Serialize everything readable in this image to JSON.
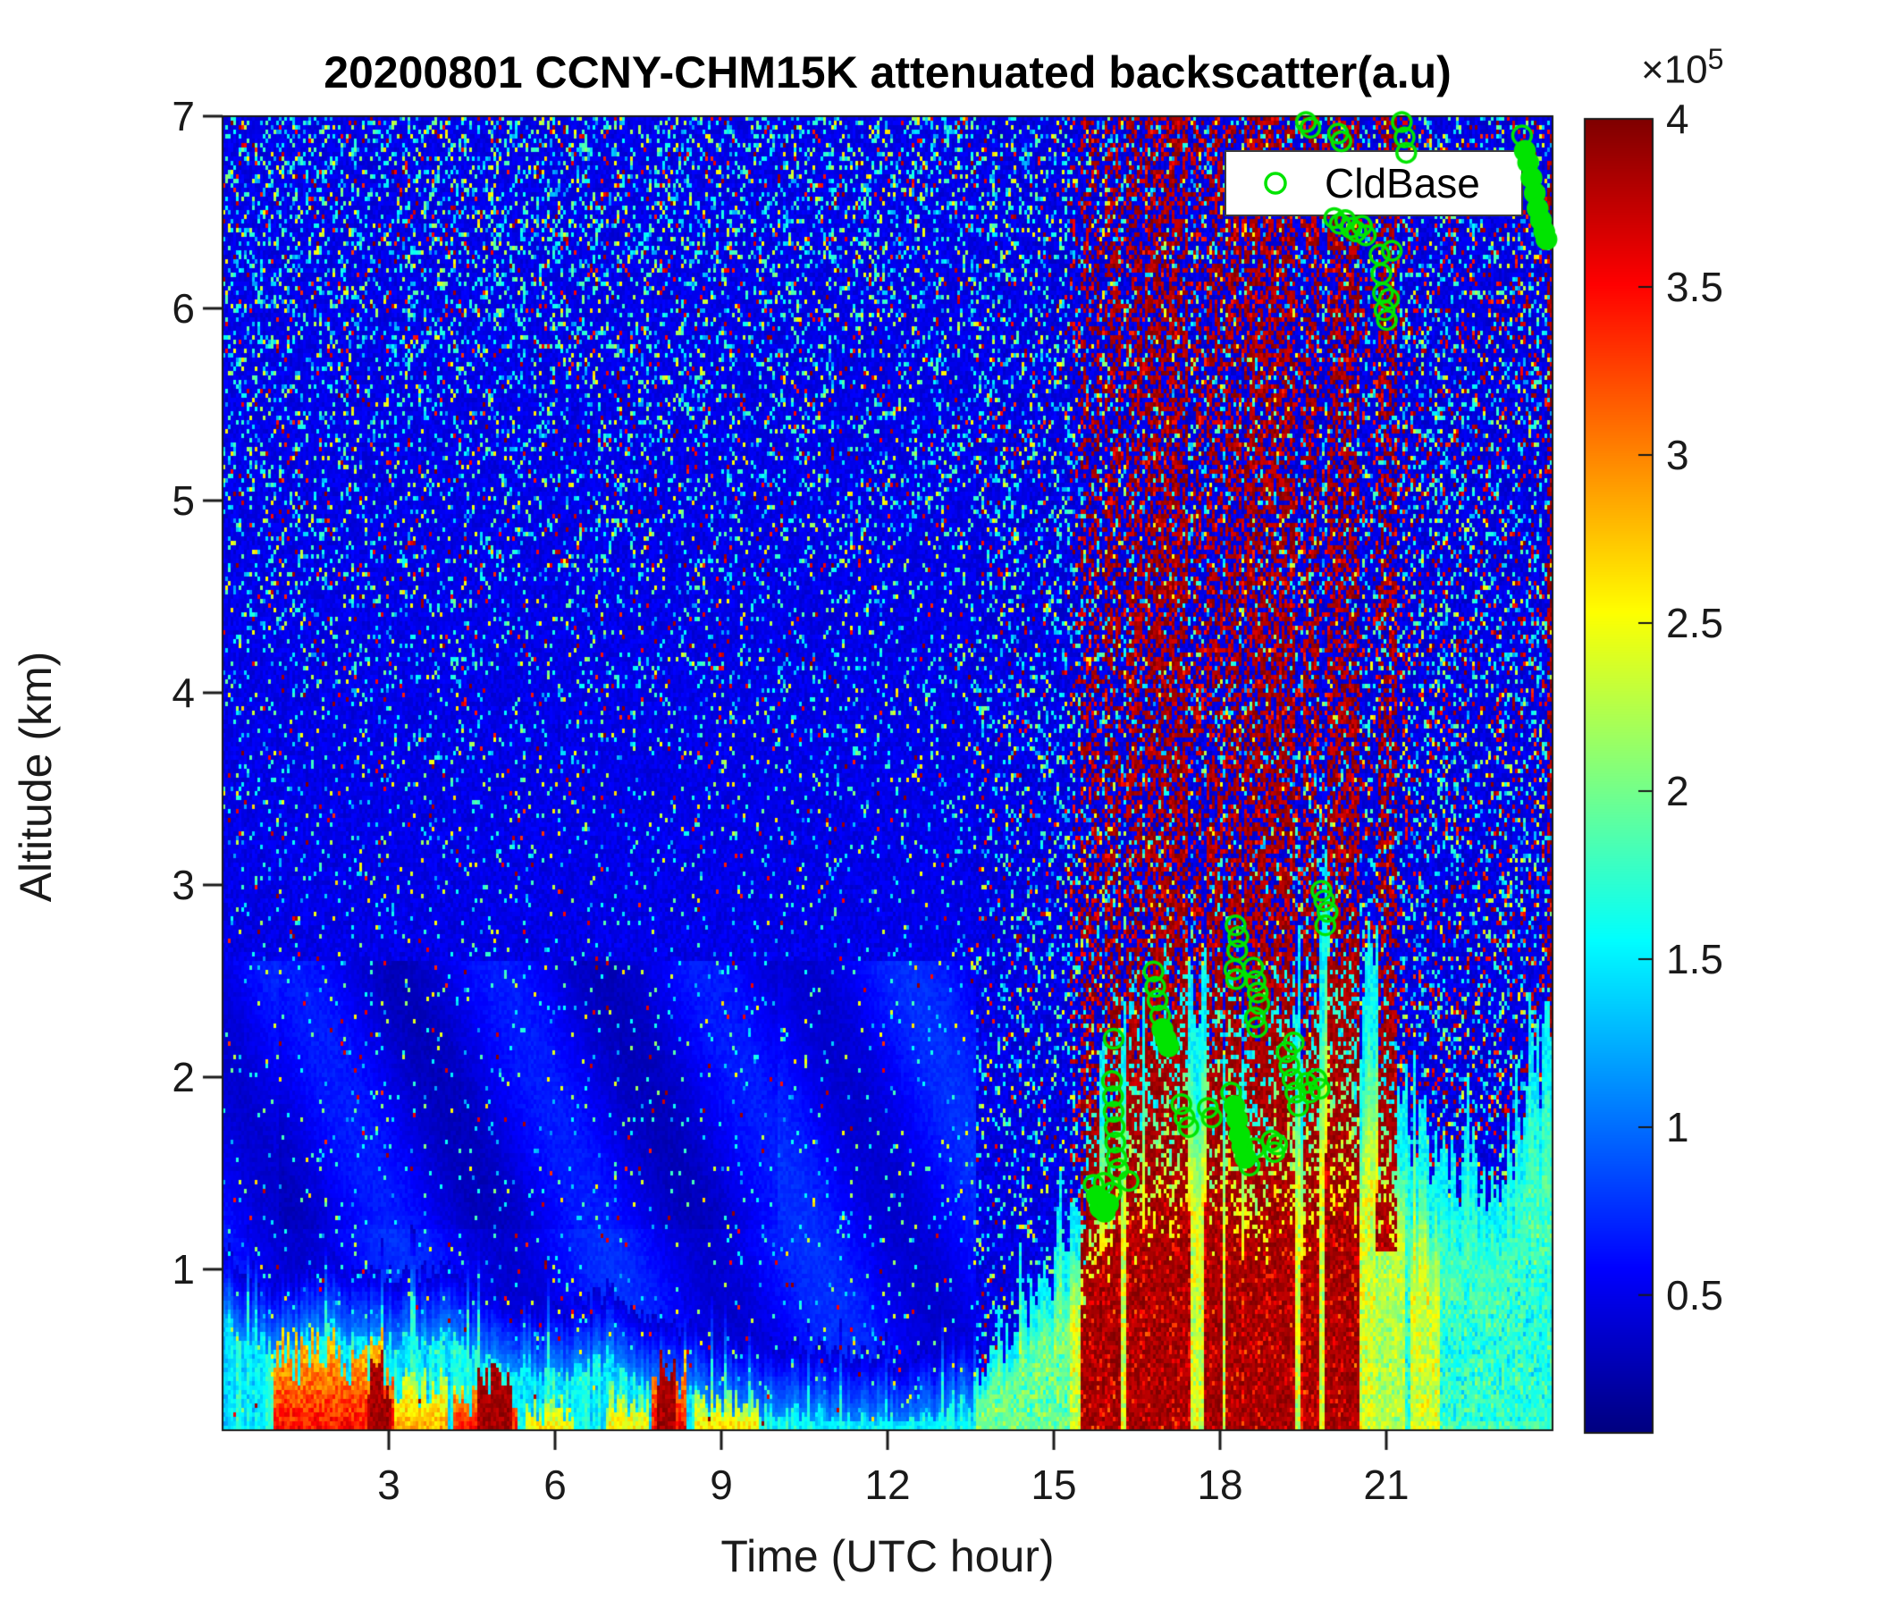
{
  "chart_data": {
    "type": "heatmap",
    "title": "20200801 CCNY-CHM15K attenuated backscatter(a.u)",
    "xlabel": "Time (UTC hour)",
    "ylabel": "Altitude (km)",
    "x_range": [
      0,
      24
    ],
    "x_ticks": [
      3,
      6,
      9,
      12,
      15,
      18,
      21
    ],
    "y_range": [
      0.16,
      7
    ],
    "y_ticks": [
      1,
      2,
      3,
      4,
      5,
      6,
      7
    ],
    "grid": false,
    "colorbar": {
      "colormap": "jet",
      "vmin": 0.09,
      "vmax": 4,
      "ticks": [
        0.5,
        1,
        1.5,
        2,
        2.5,
        3,
        3.5,
        4
      ],
      "scale_prefix": "×10",
      "scale_exponent": "5"
    },
    "legend": {
      "label": "CldBase",
      "marker": "open-circle",
      "marker_color": "#00e400",
      "position": "northeast"
    },
    "features": {
      "description": "Ceilometer attenuated-backscatter curtain: noisy blue free troposphere; cyan boundary layer 0-14 UTC; strong surface aerosol layer 1-9.5 UTC; convective plumes with cloud/rain after 14 UTC; saturated dark-red precipitation streaks 15.5-21.2 UTC.",
      "boundary_layer_top_km": [
        [
          0,
          0.75
        ],
        [
          0.5,
          0.65
        ],
        [
          1,
          0.6
        ],
        [
          2,
          0.68
        ],
        [
          3,
          0.62
        ],
        [
          4,
          0.66
        ],
        [
          5,
          0.5
        ],
        [
          6,
          0.45
        ],
        [
          7,
          0.52
        ],
        [
          8,
          0.38
        ],
        [
          9,
          0.3
        ],
        [
          10,
          0.26
        ],
        [
          11,
          0.22
        ],
        [
          12,
          0.2
        ],
        [
          12.8,
          0.22
        ],
        [
          13.4,
          0.3
        ]
      ],
      "surface_aerosol_layers": [
        {
          "t": [
            0.9,
            3.1
          ],
          "top": 0.55,
          "peak": 3.5
        },
        {
          "t": [
            3.1,
            4.05
          ],
          "top": 0.4,
          "peak": 3.0
        },
        {
          "t": [
            4.15,
            5.3
          ],
          "top": 0.33,
          "peak": 3.6
        },
        {
          "t": [
            5.45,
            6.35
          ],
          "top": 0.28,
          "peak": 2.9
        },
        {
          "t": [
            6.9,
            7.7
          ],
          "top": 0.33,
          "peak": 2.8
        },
        {
          "t": [
            7.75,
            8.35
          ],
          "top": 0.45,
          "peak": 3.6
        },
        {
          "t": [
            8.5,
            9.7
          ],
          "top": 0.3,
          "peak": 2.9
        }
      ],
      "surface_dark_cores_t": [
        [
          2.6,
          3.05
        ],
        [
          4.6,
          5.25
        ],
        [
          7.85,
          8.2
        ]
      ],
      "plume_top_km": [
        [
          13.5,
          0.4
        ],
        [
          14.3,
          0.65
        ],
        [
          14.8,
          0.9
        ],
        [
          15.2,
          1.15
        ],
        [
          15.6,
          1.55
        ],
        [
          16,
          2.05
        ],
        [
          16.5,
          2.35
        ],
        [
          17,
          2.45
        ],
        [
          17.5,
          2.25
        ],
        [
          18,
          2.45
        ],
        [
          18.5,
          2.25
        ],
        [
          19,
          2.35
        ],
        [
          19.6,
          2.55
        ],
        [
          20,
          2.8
        ],
        [
          20.4,
          2.5
        ],
        [
          21,
          2.35
        ],
        [
          21.4,
          1.9
        ],
        [
          22,
          1.55
        ],
        [
          23,
          1.45
        ],
        [
          23.5,
          1.9
        ],
        [
          24,
          2.4
        ]
      ],
      "convective_red_cores_t": [
        {
          "t": [
            15.5,
            16.2
          ],
          "lo": 0
        },
        {
          "t": [
            16.3,
            17.45
          ],
          "lo": 0
        },
        {
          "t": [
            17.7,
            18.05
          ],
          "lo": 0
        },
        {
          "t": [
            18.1,
            19.35
          ],
          "lo": 0
        },
        {
          "t": [
            19.45,
            19.8
          ],
          "lo": 0
        },
        {
          "t": [
            19.9,
            20.5
          ],
          "lo": 0
        },
        {
          "t": [
            20.8,
            21.35
          ],
          "lo": 1.1
        }
      ],
      "rain_streaks": [
        {
          "t": [
            12.65,
            12.78
          ],
          "d": 0.1
        },
        {
          "t": [
            15.5,
            15.8
          ],
          "d": 0.3
        },
        {
          "t": [
            15.9,
            16.2
          ],
          "d": 0.45
        },
        {
          "t": [
            16.3,
            16.6
          ],
          "d": 0.5
        },
        {
          "t": [
            16.65,
            17.4
          ],
          "d": 0.6
        },
        {
          "t": [
            17.5,
            17.68
          ],
          "d": 0.35
        },
        {
          "t": [
            17.75,
            18.05
          ],
          "d": 0.45
        },
        {
          "t": [
            18.1,
            18.4
          ],
          "d": 0.5
        },
        {
          "t": [
            18.45,
            19.35
          ],
          "d": 0.6
        },
        {
          "t": [
            19.5,
            19.8
          ],
          "d": 0.45
        },
        {
          "t": [
            19.95,
            20.5
          ],
          "d": 0.55
        },
        {
          "t": [
            20.85,
            21.2
          ],
          "d": 0.5
        },
        {
          "t": [
            23.88,
            24.01
          ],
          "d": 0.5
        }
      ],
      "yellow_columns_t": [
        [
          21.45,
          21.95
        ]
      ],
      "texture": {
        "background_value_range": [
          0.34,
          0.6
        ],
        "speckle_values_cyan": [
          1.1,
          1.9
        ],
        "speckle_values_yellow": [
          1.9,
          2.7
        ],
        "speckle_values_red": [
          3.3,
          4.0
        ],
        "night_speckle_p": [
          0.035,
          0.27
        ],
        "day_speckle_p": 0.3,
        "day_red_fraction": 0.5,
        "evening_speckle_p": 0.26,
        "evening_red_fraction": 0.35
      }
    },
    "cloud_base_points": [
      [
        15.72,
        1.44,
        0
      ],
      [
        15.78,
        1.38,
        1
      ],
      [
        15.84,
        1.32,
        1
      ],
      [
        15.92,
        1.3,
        1
      ],
      [
        15.98,
        1.34,
        1
      ],
      [
        15.9,
        1.45,
        0
      ],
      [
        16.04,
        1.4,
        0
      ],
      [
        16.05,
        1.98,
        0
      ],
      [
        16.07,
        1.9,
        0
      ],
      [
        16.08,
        1.82,
        0
      ],
      [
        16.1,
        1.74,
        0
      ],
      [
        16.11,
        1.66,
        0
      ],
      [
        16.13,
        1.58,
        0
      ],
      [
        16.16,
        1.52,
        0
      ],
      [
        16.35,
        1.46,
        0
      ],
      [
        16.08,
        2.2,
        0
      ],
      [
        16.8,
        2.55,
        0
      ],
      [
        16.83,
        2.47,
        0
      ],
      [
        16.87,
        2.4,
        0
      ],
      [
        16.92,
        2.32,
        0
      ],
      [
        16.96,
        2.25,
        1
      ],
      [
        17.02,
        2.2,
        1
      ],
      [
        17.07,
        2.16,
        1
      ],
      [
        17.3,
        1.86,
        0
      ],
      [
        17.36,
        1.79,
        0
      ],
      [
        17.43,
        1.74,
        0
      ],
      [
        17.78,
        1.84,
        0
      ],
      [
        17.85,
        1.79,
        0
      ],
      [
        18.2,
        1.92,
        0
      ],
      [
        18.26,
        1.85,
        1
      ],
      [
        18.31,
        1.78,
        1
      ],
      [
        18.35,
        1.7,
        1
      ],
      [
        18.4,
        1.64,
        1
      ],
      [
        18.46,
        1.58,
        1
      ],
      [
        18.53,
        1.54,
        0
      ],
      [
        18.62,
        1.63,
        0
      ],
      [
        18.28,
        2.79,
        0
      ],
      [
        18.33,
        2.73,
        0
      ],
      [
        18.31,
        2.66,
        0
      ],
      [
        18.26,
        2.56,
        0
      ],
      [
        18.29,
        2.51,
        0
      ],
      [
        18.6,
        2.57,
        0
      ],
      [
        18.64,
        2.5,
        0
      ],
      [
        18.68,
        2.44,
        0
      ],
      [
        18.71,
        2.38,
        0
      ],
      [
        18.63,
        2.31,
        0
      ],
      [
        18.67,
        2.26,
        0
      ],
      [
        18.93,
        1.67,
        0
      ],
      [
        18.98,
        1.61,
        0
      ],
      [
        19.03,
        1.65,
        0
      ],
      [
        19.2,
        2.13,
        0
      ],
      [
        19.25,
        2.06,
        0
      ],
      [
        19.31,
        1.99,
        0
      ],
      [
        19.36,
        1.92,
        0
      ],
      [
        19.41,
        1.85,
        0
      ],
      [
        19.33,
        2.18,
        0
      ],
      [
        19.56,
        1.97,
        0
      ],
      [
        19.62,
        1.92,
        0
      ],
      [
        19.74,
        1.99,
        0
      ],
      [
        19.8,
        1.94,
        0
      ],
      [
        19.83,
        2.97,
        0
      ],
      [
        19.88,
        2.92,
        0
      ],
      [
        19.94,
        2.86,
        0
      ],
      [
        19.9,
        2.79,
        0
      ],
      [
        19.55,
        6.97,
        0
      ],
      [
        19.63,
        6.94,
        0
      ],
      [
        20.13,
        6.91,
        0
      ],
      [
        20.19,
        6.87,
        0
      ],
      [
        21.28,
        6.97,
        0
      ],
      [
        21.33,
        6.89,
        0
      ],
      [
        21.36,
        6.81,
        0
      ],
      [
        20.06,
        6.47,
        0
      ],
      [
        20.16,
        6.44,
        0
      ],
      [
        20.26,
        6.46,
        0
      ],
      [
        20.36,
        6.42,
        0
      ],
      [
        20.46,
        6.4,
        0
      ],
      [
        20.56,
        6.43,
        0
      ],
      [
        20.63,
        6.38,
        0
      ],
      [
        21.1,
        6.3,
        0
      ],
      [
        20.88,
        6.28,
        0
      ],
      [
        20.91,
        6.18,
        0
      ],
      [
        20.94,
        6.08,
        0
      ],
      [
        20.97,
        5.99,
        0
      ],
      [
        21.01,
        5.94,
        0
      ],
      [
        21.05,
        6.05,
        0
      ],
      [
        23.45,
        6.9,
        0
      ],
      [
        23.5,
        6.82,
        1
      ],
      [
        23.56,
        6.76,
        1
      ],
      [
        23.62,
        6.68,
        1
      ],
      [
        23.68,
        6.6,
        1
      ],
      [
        23.73,
        6.52,
        1
      ],
      [
        23.79,
        6.46,
        1
      ],
      [
        23.85,
        6.4,
        1
      ],
      [
        23.89,
        6.36,
        1
      ]
    ]
  }
}
